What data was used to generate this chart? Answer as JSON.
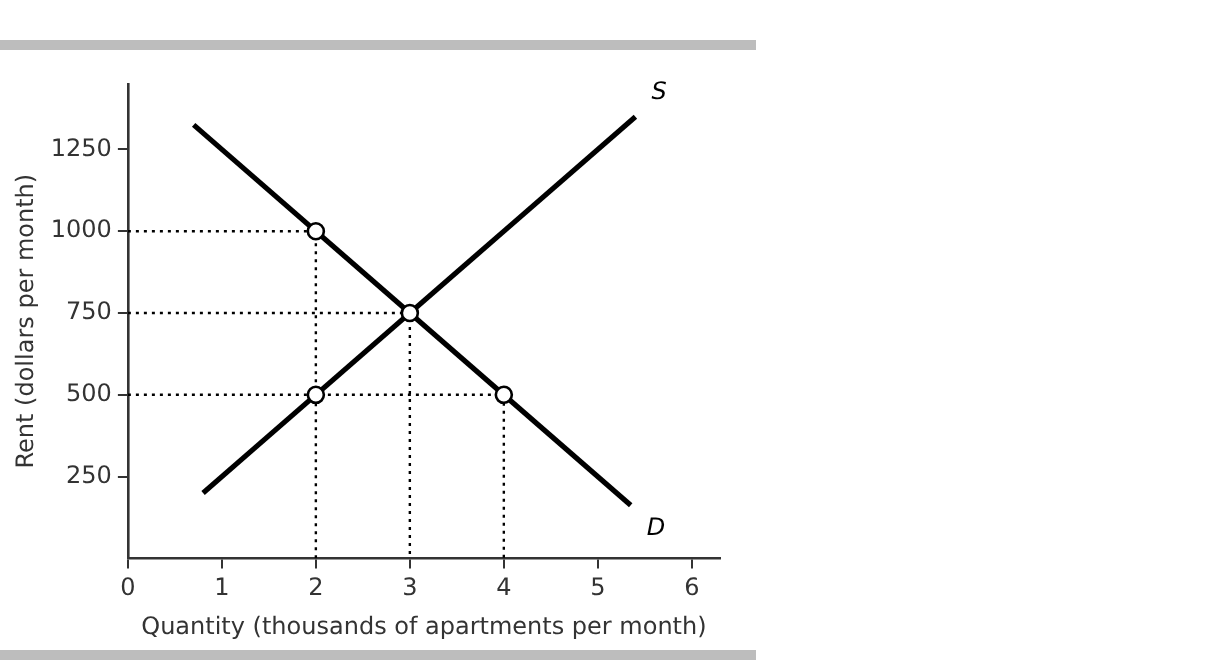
{
  "chart_data": {
    "type": "line",
    "xlabel": "Quantity (thousands of apartments per month)",
    "ylabel": "Rent (dollars per month)",
    "xlim": [
      0,
      6.3
    ],
    "xticks": [
      0,
      1,
      2,
      3,
      4,
      5,
      6
    ],
    "ylim": [
      0,
      1450
    ],
    "yticks": [
      250,
      500,
      750,
      1000,
      1250
    ],
    "grid": false,
    "legend": false,
    "series": [
      {
        "name": "S",
        "color": "#000000",
        "x": [
          0.8,
          5.4
        ],
        "values": [
          200,
          1350
        ],
        "marker": "none",
        "line_style": "solid"
      },
      {
        "name": "D",
        "color": "#000000",
        "x": [
          0.7,
          5.35
        ],
        "values": [
          1325,
          162.5
        ],
        "marker": "none",
        "line_style": "solid"
      },
      {
        "color": "#000000",
        "x": [
          0,
          2,
          2
        ],
        "values": [
          1000,
          1000,
          0
        ],
        "marker": "none",
        "line_style": "dotted"
      },
      {
        "color": "#000000",
        "x": [
          0,
          3,
          3
        ],
        "values": [
          750,
          750,
          0
        ],
        "marker": "none",
        "line_style": "dotted"
      },
      {
        "color": "#000000",
        "x": [
          0,
          4,
          4
        ],
        "values": [
          500,
          500,
          0
        ],
        "marker": "none",
        "line_style": "dotted"
      },
      {
        "type": "scatter",
        "color": "#000000",
        "x": [
          2,
          3,
          2,
          4
        ],
        "values": [
          1000,
          750,
          500,
          500
        ],
        "marker": "circle"
      }
    ]
  }
}
